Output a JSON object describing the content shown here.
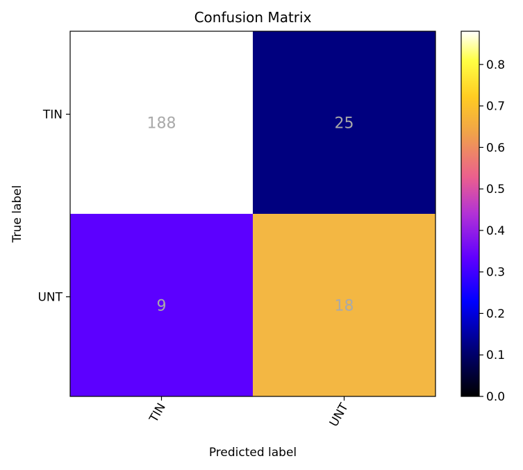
{
  "chart_data": {
    "type": "heatmap",
    "title": "Confusion Matrix",
    "xlabel": "Predicted label",
    "ylabel": "True label",
    "x_categories": [
      "TIN",
      "UNT"
    ],
    "y_categories": [
      "TIN",
      "UNT"
    ],
    "values": [
      [
        188,
        25
      ],
      [
        9,
        18
      ]
    ],
    "normalized": [
      [
        0.88,
        0.12
      ],
      [
        0.33,
        0.67
      ]
    ],
    "colormap": "gnuplot2",
    "cell_text_color": "#a9a9a9",
    "colorbar": {
      "range": [
        0.0,
        0.88
      ],
      "ticks": [
        0.0,
        0.1,
        0.2,
        0.3,
        0.4,
        0.5,
        0.6,
        0.7,
        0.8
      ],
      "tick_labels": [
        "0.0",
        "0.1",
        "0.2",
        "0.3",
        "0.4",
        "0.5",
        "0.6",
        "0.7",
        "0.8"
      ]
    }
  }
}
